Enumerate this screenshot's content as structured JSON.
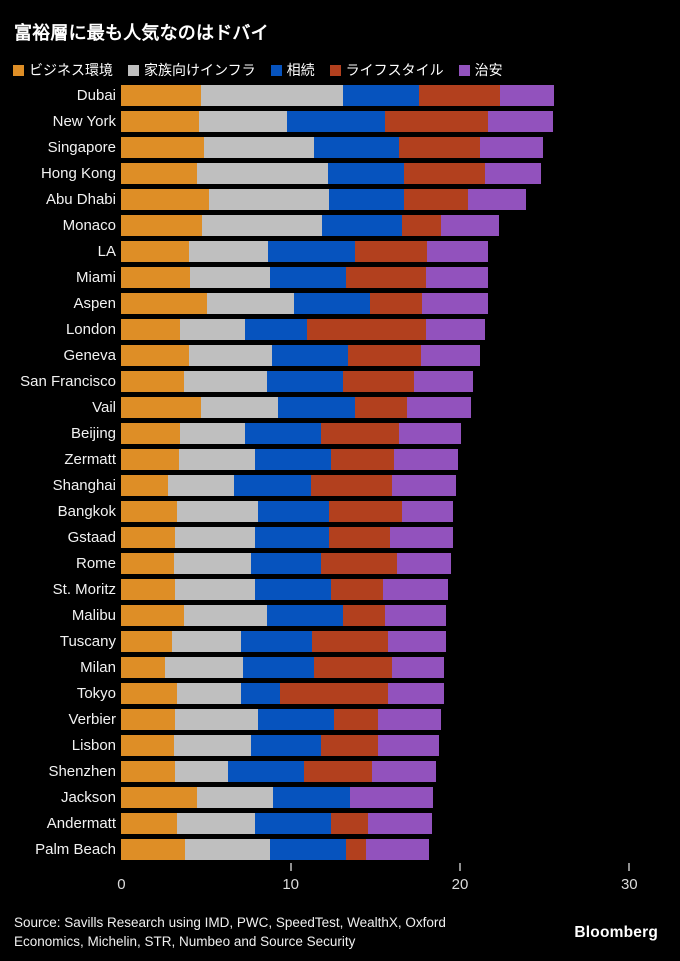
{
  "title": "富裕層に最も人気なのはドバイ",
  "legend": {
    "items": [
      {
        "label": "ビジネス環境",
        "color": "#DE8E26"
      },
      {
        "label": "家族向けインフラ",
        "color": "#BFBFBF"
      },
      {
        "label": "相続",
        "color": "#0653BE"
      },
      {
        "label": "ライフスタイル",
        "color": "#B2401E"
      },
      {
        "label": "治安",
        "color": "#9252BD"
      }
    ]
  },
  "chart_data": {
    "type": "bar",
    "stacked": true,
    "orientation": "horizontal",
    "title": "富裕層に最も人気なのはドバイ",
    "xlabel": "",
    "ylabel": "",
    "xlim": [
      0,
      30
    ],
    "x_ticks": [
      0,
      10,
      20,
      30
    ],
    "grid": false,
    "legend_position": "top",
    "categories": [
      "Dubai",
      "New York",
      "Singapore",
      "Hong Kong",
      "Abu Dhabi",
      "Monaco",
      "LA",
      "Miami",
      "Aspen",
      "London",
      "Geneva",
      "San Francisco",
      "Vail",
      "Beijing",
      "Zermatt",
      "Shanghai",
      "Bangkok",
      "Gstaad",
      "Rome",
      "St. Moritz",
      "Malibu",
      "Tuscany",
      "Milan",
      "Tokyo",
      "Verbier",
      "Lisbon",
      "Shenzhen",
      "Jackson",
      "Andermatt",
      "Palm Beach"
    ],
    "series": [
      {
        "name": "ビジネス環境",
        "color": "#DE8E26",
        "values": [
          4.7,
          4.6,
          4.9,
          4.5,
          5.2,
          4.8,
          4.0,
          4.1,
          5.1,
          3.5,
          4.0,
          3.7,
          4.7,
          3.5,
          3.4,
          2.8,
          3.3,
          3.2,
          3.1,
          3.2,
          3.7,
          3.0,
          2.6,
          3.3,
          3.2,
          3.1,
          3.2,
          4.5,
          3.3,
          3.8
        ]
      },
      {
        "name": "家族向けインフラ",
        "color": "#BFBFBF",
        "values": [
          8.4,
          5.2,
          6.5,
          7.7,
          7.1,
          7.1,
          4.7,
          4.7,
          5.1,
          3.8,
          4.9,
          4.9,
          4.6,
          3.8,
          4.5,
          3.9,
          4.8,
          4.7,
          4.6,
          4.7,
          4.9,
          4.1,
          4.6,
          3.8,
          4.9,
          4.6,
          3.1,
          4.5,
          4.6,
          5.0
        ]
      },
      {
        "name": "相続",
        "color": "#0653BE",
        "values": [
          4.5,
          5.8,
          5.0,
          4.5,
          4.4,
          4.7,
          5.1,
          4.5,
          4.5,
          3.7,
          4.5,
          4.5,
          4.5,
          4.5,
          4.5,
          4.5,
          4.2,
          4.4,
          4.1,
          4.5,
          4.5,
          4.2,
          4.2,
          2.3,
          4.5,
          4.1,
          4.5,
          4.5,
          4.5,
          4.5
        ]
      },
      {
        "name": "ライフスタイル",
        "color": "#B2401E",
        "values": [
          4.8,
          6.1,
          4.8,
          4.8,
          3.8,
          2.3,
          4.3,
          4.7,
          3.1,
          7.0,
          4.3,
          4.2,
          3.1,
          4.6,
          3.7,
          4.8,
          4.3,
          3.6,
          4.5,
          3.1,
          2.5,
          4.5,
          4.6,
          6.4,
          2.6,
          3.4,
          4.0,
          0,
          2.2,
          1.2
        ]
      },
      {
        "name": "治安",
        "color": "#9252BD",
        "values": [
          3.2,
          3.8,
          3.7,
          3.3,
          3.4,
          3.4,
          3.6,
          3.7,
          3.9,
          3.5,
          3.5,
          3.5,
          3.8,
          3.7,
          3.8,
          3.8,
          3.0,
          3.7,
          3.2,
          3.8,
          3.6,
          3.4,
          3.1,
          3.3,
          3.7,
          3.6,
          3.8,
          4.9,
          3.8,
          3.7
        ]
      }
    ]
  },
  "source": {
    "line1": "Source: Savills Research using IMD, PWC, SpeedTest, WealthX, Oxford",
    "line2": "Economics, Michelin, STR, Numbeo and Source Security"
  },
  "brand": "Bloomberg"
}
